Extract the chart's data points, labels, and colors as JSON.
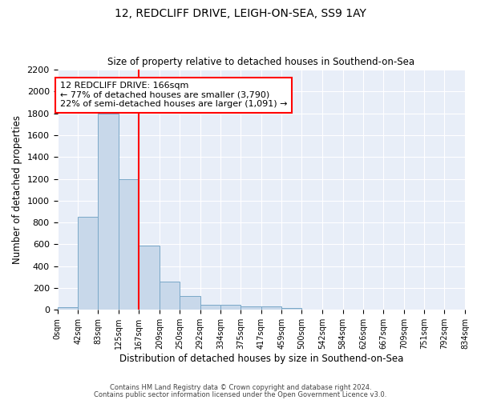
{
  "title": "12, REDCLIFF DRIVE, LEIGH-ON-SEA, SS9 1AY",
  "subtitle": "Size of property relative to detached houses in Southend-on-Sea",
  "xlabel": "Distribution of detached houses by size in Southend-on-Sea",
  "ylabel": "Number of detached properties",
  "bar_edges": [
    0,
    42,
    83,
    125,
    167,
    209,
    250,
    292,
    334,
    375,
    417,
    459,
    500,
    542,
    584,
    626,
    667,
    709,
    751,
    792,
    834
  ],
  "bar_heights": [
    25,
    850,
    1800,
    1200,
    590,
    260,
    125,
    50,
    45,
    35,
    30,
    15,
    0,
    0,
    0,
    0,
    0,
    0,
    0,
    0
  ],
  "bar_color": "#c8d8ea",
  "bar_edgecolor": "#7aa8c8",
  "vline_x": 167,
  "vline_color": "red",
  "annotation_text": "12 REDCLIFF DRIVE: 166sqm\n← 77% of detached houses are smaller (3,790)\n22% of semi-detached houses are larger (1,091) →",
  "ylim": [
    0,
    2200
  ],
  "yticks": [
    0,
    200,
    400,
    600,
    800,
    1000,
    1200,
    1400,
    1600,
    1800,
    2000,
    2200
  ],
  "tick_labels": [
    "0sqm",
    "42sqm",
    "83sqm",
    "125sqm",
    "167sqm",
    "209sqm",
    "250sqm",
    "292sqm",
    "334sqm",
    "375sqm",
    "417sqm",
    "459sqm",
    "500sqm",
    "542sqm",
    "584sqm",
    "626sqm",
    "667sqm",
    "709sqm",
    "751sqm",
    "792sqm",
    "834sqm"
  ],
  "footnote1": "Contains HM Land Registry data © Crown copyright and database right 2024.",
  "footnote2": "Contains public sector information licensed under the Open Government Licence v3.0.",
  "bg_color": "#ffffff",
  "plot_bg_color": "#e8eef8"
}
